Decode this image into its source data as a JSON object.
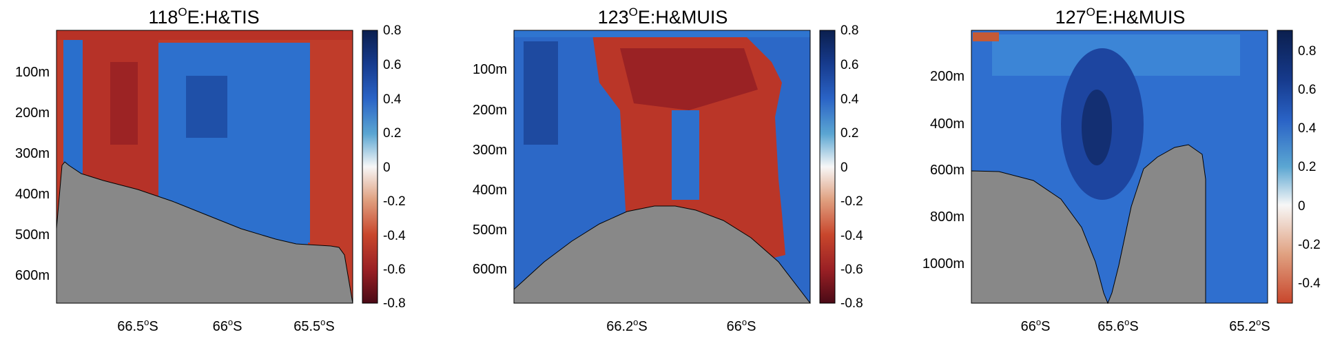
{
  "chart_data": [
    {
      "type": "heatmap",
      "title": "118°E:H&TIS",
      "title_parts": {
        "lon": "118",
        "suffix": "E:H&TIS"
      },
      "xticks": [
        "66.5°S",
        "66°S",
        "65.5°S"
      ],
      "xtick_parts": [
        {
          "num": "66.5",
          "unit": "S"
        },
        {
          "num": "66",
          "unit": "S"
        },
        {
          "num": "65.5",
          "unit": "S"
        }
      ],
      "xtick_values": [
        66.5,
        66.0,
        65.5
      ],
      "xlim": [
        66.97,
        65.33
      ],
      "yticks": [
        "100m",
        "200m",
        "300m",
        "400m",
        "500m",
        "600m"
      ],
      "ytick_values": [
        100,
        200,
        300,
        400,
        500,
        600
      ],
      "ylim": [
        0,
        670
      ],
      "colorbar_ticks": [
        "0.8",
        "0.6",
        "0.4",
        "0.2",
        "0",
        "-0.2",
        "-0.4",
        "-0.6",
        "-0.8"
      ],
      "colorbar_values": [
        0.8,
        0.6,
        0.4,
        0.2,
        0,
        -0.2,
        -0.4,
        -0.6,
        -0.8
      ],
      "clim": [
        -0.8,
        0.8
      ],
      "bathymetry": {
        "x": [
          66.97,
          66.95,
          66.92,
          66.85,
          66.7,
          66.5,
          66.3,
          66.1,
          65.9,
          65.7,
          65.55,
          65.43,
          65.39,
          65.36,
          65.33
        ],
        "depth": [
          460,
          325,
          330,
          355,
          380,
          410,
          450,
          490,
          525,
          545,
          548,
          550,
          560,
          610,
          670
        ]
      },
      "field": {
        "description": "Heatmap bands across latitude (values in colorbar units)",
        "bands": [
          {
            "x": [
              66.97,
              66.88
            ],
            "value": 0.5
          },
          {
            "x": [
              66.88,
              66.52
            ],
            "value": -0.55
          },
          {
            "x": [
              66.52,
              65.62
            ],
            "value": 0.55
          },
          {
            "x": [
              65.62,
              65.33
            ],
            "value": -0.5
          }
        ],
        "surface_layer": {
          "depth": [
            0,
            25
          ],
          "value": -0.5
        }
      }
    },
    {
      "type": "heatmap",
      "title": "123°E:H&MUIS",
      "title_parts": {
        "lon": "123",
        "suffix": "E:H&MUIS"
      },
      "xticks": [
        "66.2°S",
        "66°S"
      ],
      "xtick_parts": [
        {
          "num": "66.2",
          "unit": "S"
        },
        {
          "num": "66",
          "unit": "S"
        }
      ],
      "xtick_values": [
        66.2,
        66.0
      ],
      "xlim": [
        66.45,
        65.78
      ],
      "yticks": [
        "100m",
        "200m",
        "300m",
        "400m",
        "500m",
        "600m"
      ],
      "ytick_values": [
        100,
        200,
        300,
        400,
        500,
        600
      ],
      "ylim": [
        0,
        700
      ],
      "colorbar_ticks": [
        "0.8",
        "0.6",
        "0.4",
        "0.2",
        "0",
        "-0.2",
        "-0.4",
        "-0.6",
        "-0.8"
      ],
      "colorbar_values": [
        0.8,
        0.6,
        0.4,
        0.2,
        0,
        -0.2,
        -0.4,
        -0.6,
        -0.8
      ],
      "clim": [
        -0.8,
        0.8
      ],
      "bathymetry": {
        "x": [
          66.45,
          66.38,
          66.3,
          66.22,
          66.15,
          66.1,
          66.05,
          66.0,
          65.93,
          65.86,
          65.78
        ],
        "depth": [
          660,
          600,
          535,
          480,
          455,
          452,
          462,
          490,
          540,
          610,
          700
        ]
      },
      "field": {
        "description": "Heatmap bands across latitude (values in colorbar units)",
        "bands": [
          {
            "x": [
              66.45,
              66.28
            ],
            "value": 0.6
          },
          {
            "x": [
              66.28,
              65.9
            ],
            "value": -0.6
          },
          {
            "x": [
              65.9,
              65.78
            ],
            "value": 0.6
          }
        ],
        "inner_column": {
          "x": [
            66.08,
            66.03
          ],
          "depth": [
            200,
            400
          ],
          "value": 0.5
        }
      }
    },
    {
      "type": "heatmap",
      "title": "127°E:H&MUIS",
      "title_parts": {
        "lon": "127",
        "suffix": "E:H&MUIS"
      },
      "xticks": [
        "66°S",
        "65.6°S",
        "65.2°S"
      ],
      "xtick_parts": [
        {
          "num": "66",
          "unit": "S"
        },
        {
          "num": "65.6",
          "unit": "S"
        },
        {
          "num": "65.2",
          "unit": "S"
        }
      ],
      "xtick_values": [
        66.0,
        65.6,
        65.2
      ],
      "xlim": [
        66.25,
        65.18
      ],
      "yticks": [
        "200m",
        "400m",
        "600m",
        "800m",
        "1000m"
      ],
      "ytick_values": [
        200,
        400,
        600,
        800,
        1000
      ],
      "ylim": [
        0,
        1180
      ],
      "colorbar_ticks": [
        "0.8",
        "0.6",
        "0.4",
        "0.2",
        "0",
        "-0.2",
        "-0.4"
      ],
      "colorbar_values": [
        0.8,
        0.6,
        0.4,
        0.2,
        0,
        -0.2,
        -0.4
      ],
      "clim": [
        -0.5,
        0.9
      ],
      "bathymetry": {
        "x": [
          66.25,
          66.1,
          65.95,
          65.85,
          65.75,
          65.68,
          65.62,
          65.6,
          65.57,
          65.5,
          65.42,
          65.35,
          65.28,
          65.22,
          65.18
        ],
        "depth": [
          610,
          615,
          660,
          740,
          880,
          1050,
          1170,
          1180,
          1140,
          900,
          660,
          560,
          505,
          520,
          650
        ]
      },
      "field": {
        "description": "Mostly positive values (blue) above the seafloor",
        "bands": [
          {
            "x": [
              66.25,
              65.18
            ],
            "value": 0.65
          }
        ],
        "surface_patch": {
          "x": [
            66.25,
            66.16
          ],
          "depth": [
            0,
            40
          ],
          "value": -0.4
        }
      }
    }
  ]
}
